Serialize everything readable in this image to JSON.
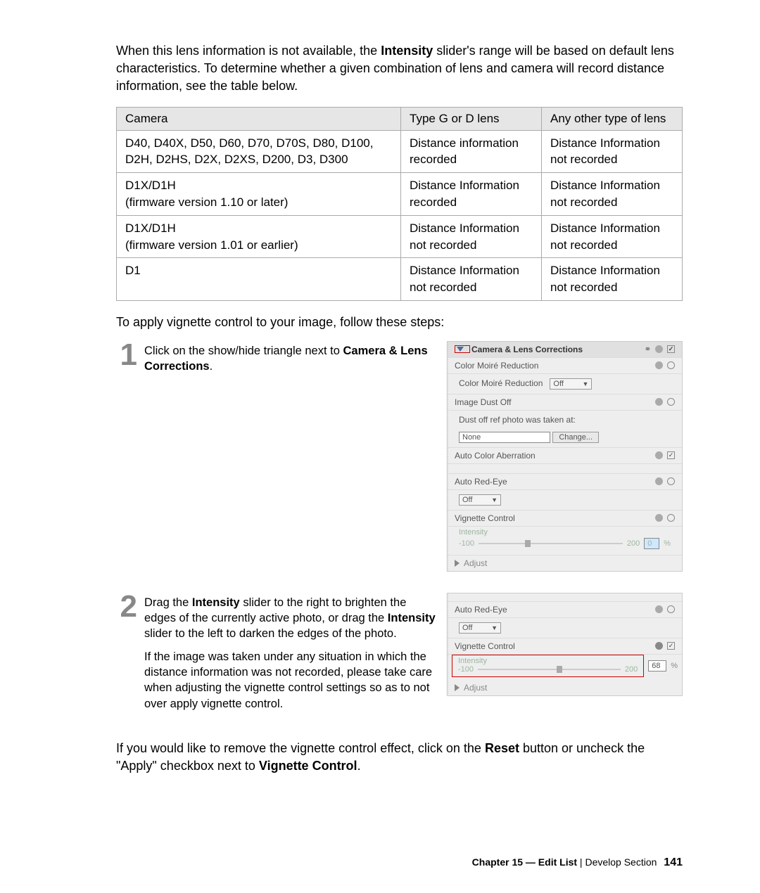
{
  "intro": {
    "pre": "When this lens information is not available, the ",
    "bold": "Intensity",
    "post": " slider's range will be based on default lens characteristics. To determine whether a given combination of lens and camera will record distance information, see the table below."
  },
  "table": {
    "headers": [
      "Camera",
      "Type G or D lens",
      "Any other type of lens"
    ],
    "rows": [
      [
        "D40, D40X, D50, D60, D70, D70S, D80, D100, D2H, D2HS, D2X, D2XS, D200, D3, D300",
        "Distance information recorded",
        "Distance Information not recorded"
      ],
      [
        "D1X/D1H\n(firmware version 1.10 or later)",
        "Distance Information recorded",
        "Distance Information not recorded"
      ],
      [
        "D1X/D1H\n(firmware version 1.01 or earlier)",
        "Distance Information not recorded",
        "Distance Information not recorded"
      ],
      [
        "D1",
        "Distance Information not recorded",
        "Distance Information not recorded"
      ]
    ]
  },
  "apply_text": "To apply vignette control to your image, follow these steps:",
  "step1": {
    "num": "1",
    "text_pre": "Click on the show/hide triangle next to ",
    "bold": "Camera & Lens Corrections",
    "text_post": "."
  },
  "step2": {
    "num": "2",
    "p1_parts": [
      "Drag the ",
      "Intensity",
      " slider to the right to brighten the edges of the currently active photo, or drag the ",
      "Intensity",
      " slider to the left to darken the edges of the photo."
    ],
    "p2": "If the image was taken under any situation in which the distance information was not recorded, please take care when adjusting the vignette control settings so as to not over apply vignette control."
  },
  "closing": {
    "pre": "If you would like to remove the vignette control effect, click on the ",
    "b1": "Reset",
    "mid": " button or uncheck the \"Apply\" checkbox next to ",
    "b2": "Vignette Control",
    "post": "."
  },
  "panel1": {
    "title": "Camera & Lens Corrections",
    "cmr": "Color Moiré Reduction",
    "cmr_val": "Off",
    "ido": "Image Dust Off",
    "dust_text": "Dust off ref photo was taken at:",
    "none": "None",
    "change": "Change...",
    "aca": "Auto Color Aberration",
    "are": "Auto Red-Eye",
    "are_val": "Off",
    "vig": "Vignette Control",
    "intensity": "Intensity",
    "min": "-100",
    "max": "200",
    "val": "0",
    "pct": "%",
    "adjust": "Adjust"
  },
  "panel2": {
    "are": "Auto Red-Eye",
    "are_val": "Off",
    "vig": "Vignette Control",
    "intensity": "Intensity",
    "min": "-100",
    "max": "200",
    "val": "68",
    "pct": "%",
    "adjust": "Adjust"
  },
  "footer": {
    "chapter": "Chapter 15 — Edit List",
    "section": "Develop Section",
    "page": "141"
  }
}
